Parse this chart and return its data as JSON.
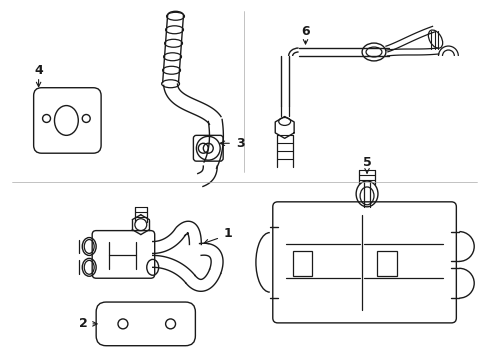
{
  "background_color": "#ffffff",
  "line_color": "#1a1a1a",
  "figsize": [
    4.89,
    3.6
  ],
  "dpi": 100,
  "border_color": "#cccccc"
}
